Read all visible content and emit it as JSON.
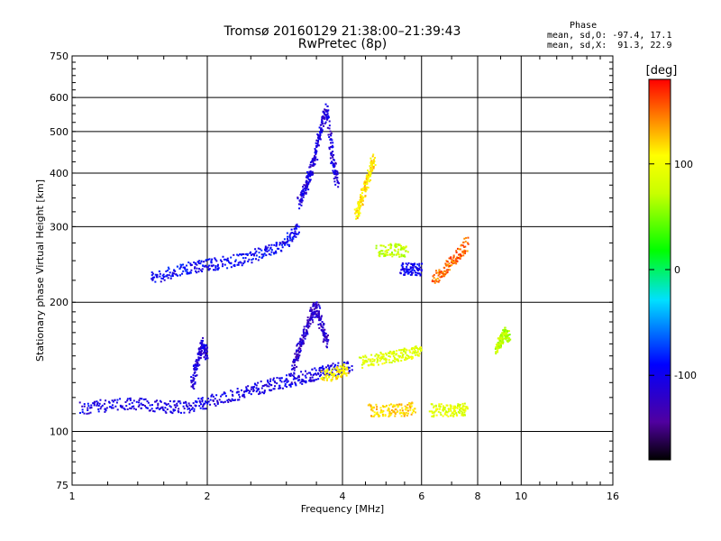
{
  "header": {
    "title_line1": "Tromsø 20160129 21:38:00–21:39:43",
    "title_line2": "RwPretec (8p)",
    "phase_heading": "Phase",
    "phase_o": "mean, sd,O: -97.4, 17.1",
    "phase_x": "mean, sd,X:  91.3, 22.9"
  },
  "colorbar": {
    "unit": "[deg]",
    "ticks": [
      "100",
      "0",
      "-100"
    ],
    "tick_values": [
      100,
      0,
      -100
    ],
    "range": [
      -180,
      180
    ]
  },
  "chart_data": {
    "type": "scatter",
    "title": "Tromsø 20160129 21:38:00–21:39:43",
    "subtitle": "RwPretec (8p)",
    "xlabel": "Frequency [MHz]",
    "ylabel": "Stationary phase Virtual Height [km]",
    "xscale": "log",
    "yscale": "log",
    "xlim": [
      1,
      16
    ],
    "ylim": [
      75,
      750
    ],
    "xticks": [
      1,
      2,
      4,
      6,
      8,
      10,
      16
    ],
    "xtick_labels": [
      "1",
      "2",
      "4",
      "6",
      "8",
      "10",
      "16"
    ],
    "yticks": [
      75,
      100,
      200,
      300,
      400,
      500,
      600,
      750
    ],
    "ytick_labels": [
      "75",
      "100",
      "200",
      "300",
      "400",
      "500",
      "600",
      "750"
    ],
    "grid": true,
    "color_encoding": "phase [deg]",
    "traces": [
      {
        "x": [
          1.05,
          1.2,
          1.4,
          1.6,
          1.8,
          2.0,
          2.3,
          2.6,
          2.9,
          3.2,
          3.5,
          3.8,
          4.2
        ],
        "y": [
          113,
          115,
          116,
          114,
          114,
          117,
          121,
          126,
          130,
          133,
          136,
          139,
          142
        ],
        "phase": -105
      },
      {
        "x": [
          3.1,
          3.2,
          3.3,
          3.4,
          3.5,
          3.6,
          3.7
        ],
        "y": [
          140,
          155,
          170,
          185,
          195,
          175,
          160
        ],
        "phase": -120
      },
      {
        "x": [
          1.85,
          1.9,
          1.95,
          2.0
        ],
        "y": [
          128,
          145,
          160,
          150
        ],
        "phase": -110
      },
      {
        "x": [
          1.5,
          1.7,
          1.9,
          2.1,
          2.4,
          2.7,
          3.0,
          3.2
        ],
        "y": [
          228,
          236,
          242,
          246,
          252,
          262,
          275,
          300
        ],
        "phase": -95
      },
      {
        "x": [
          3.2,
          3.3,
          3.4,
          3.5,
          3.6,
          3.7,
          3.8,
          3.9
        ],
        "y": [
          340,
          370,
          400,
          450,
          520,
          560,
          430,
          380
        ],
        "phase": -110
      },
      {
        "x": [
          3.6,
          3.9,
          4.1
        ],
        "y": [
          134,
          137,
          140
        ],
        "phase": 110
      },
      {
        "x": [
          4.3,
          4.4,
          4.5,
          4.6,
          4.7
        ],
        "y": [
          320,
          345,
          375,
          400,
          430
        ],
        "phase": 115
      },
      {
        "x": [
          4.4,
          4.8,
          5.2,
          5.6,
          6.0
        ],
        "y": [
          145,
          148,
          150,
          152,
          155
        ],
        "phase": 90
      },
      {
        "x": [
          4.6,
          5.0,
          5.4,
          5.8
        ],
        "y": [
          112,
          112,
          112,
          113
        ],
        "phase": 120
      },
      {
        "x": [
          6.3,
          6.8,
          7.2,
          7.6
        ],
        "y": [
          112,
          112,
          112,
          113
        ],
        "phase": 90
      },
      {
        "x": [
          8.8,
          9.0,
          9.2,
          9.4
        ],
        "y": [
          155,
          162,
          170,
          165
        ],
        "phase": 70
      },
      {
        "x": [
          4.8,
          5.2,
          5.6
        ],
        "y": [
          262,
          265,
          262
        ],
        "phase": 75
      },
      {
        "x": [
          5.4,
          5.7,
          6.0
        ],
        "y": [
          240,
          238,
          238
        ],
        "phase": -100
      },
      {
        "x": [
          6.4,
          6.8,
          7.2,
          7.6
        ],
        "y": [
          225,
          240,
          255,
          275
        ],
        "phase": 150
      }
    ]
  }
}
